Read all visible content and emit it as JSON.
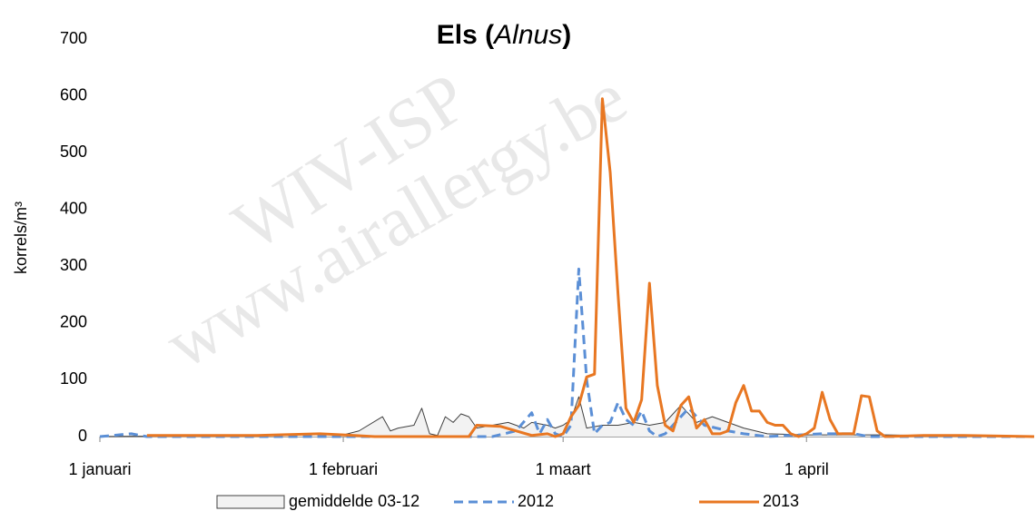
{
  "chart_data": {
    "type": "line",
    "title": [
      "Els (",
      "Alnus",
      ")"
    ],
    "y_label": "korrels/m³",
    "annotations": [
      "WIV-ISP",
      "www.airallergy.be"
    ],
    "xlim": [
      0,
      119
    ],
    "xticks": [
      {
        "value": 0,
        "label": "1 januari"
      },
      {
        "value": 31,
        "label": "1 februari"
      },
      {
        "value": 59,
        "label": "1 maart"
      },
      {
        "value": 90,
        "label": "1 april"
      }
    ],
    "ylim": [
      0,
      700
    ],
    "yticks": [
      0,
      100,
      200,
      300,
      400,
      500,
      600,
      700
    ],
    "grid": false,
    "series": [
      {
        "name": "gemiddelde 03-12",
        "style": "area",
        "color": "#404040",
        "fill": "#f2f2f2",
        "x": [
          0,
          20,
          28,
          31,
          33,
          36,
          37,
          38,
          40,
          41,
          42,
          43,
          44,
          45,
          46,
          47,
          48,
          50,
          52,
          54,
          55,
          57,
          58,
          59,
          60,
          61,
          62,
          64,
          66,
          68,
          70,
          72,
          74,
          76,
          78,
          80,
          82,
          85,
          90,
          95,
          100,
          105,
          110,
          119
        ],
        "values": [
          0,
          2,
          5,
          3,
          10,
          35,
          10,
          15,
          20,
          50,
          5,
          2,
          35,
          25,
          40,
          35,
          15,
          20,
          25,
          15,
          25,
          20,
          15,
          20,
          30,
          70,
          15,
          20,
          20,
          25,
          20,
          25,
          55,
          25,
          35,
          25,
          15,
          5,
          3,
          3,
          3,
          2,
          2,
          0
        ]
      },
      {
        "name": "2012",
        "style": "dashed",
        "color": "#5b8fd6",
        "x": [
          0,
          4,
          6,
          50,
          53,
          55,
          56,
          57,
          58,
          59,
          60,
          61,
          62,
          63,
          64,
          65,
          66,
          67,
          68,
          69,
          70,
          71,
          72,
          75,
          77,
          80,
          82,
          85,
          92,
          96,
          98,
          119
        ],
        "values": [
          0,
          5,
          0,
          0,
          10,
          42,
          5,
          30,
          5,
          0,
          20,
          295,
          100,
          5,
          20,
          25,
          60,
          30,
          20,
          45,
          10,
          0,
          5,
          50,
          20,
          10,
          5,
          0,
          5,
          5,
          0,
          0
        ]
      },
      {
        "name": "2013",
        "style": "solid",
        "color": "#e87722",
        "x": [
          6,
          20,
          28,
          31,
          35,
          47,
          48,
          51,
          53,
          55,
          57,
          58,
          59,
          60,
          61,
          62,
          63,
          64,
          65,
          66,
          67,
          68,
          69,
          70,
          71,
          72,
          73,
          74,
          75,
          76,
          77,
          78,
          79,
          80,
          81,
          82,
          83,
          84,
          85,
          86,
          87,
          88,
          89,
          90,
          91,
          92,
          93,
          94,
          95,
          96,
          97,
          98,
          99,
          100,
          105,
          110,
          119
        ],
        "values": [
          2,
          2,
          5,
          3,
          0,
          0,
          20,
          18,
          10,
          2,
          5,
          0,
          5,
          35,
          55,
          105,
          110,
          595,
          465,
          250,
          50,
          25,
          65,
          270,
          90,
          20,
          10,
          55,
          70,
          15,
          30,
          5,
          5,
          10,
          60,
          90,
          45,
          45,
          25,
          20,
          20,
          5,
          0,
          5,
          15,
          78,
          30,
          5,
          5,
          5,
          72,
          70,
          10,
          0,
          2,
          2,
          0
        ]
      }
    ]
  }
}
